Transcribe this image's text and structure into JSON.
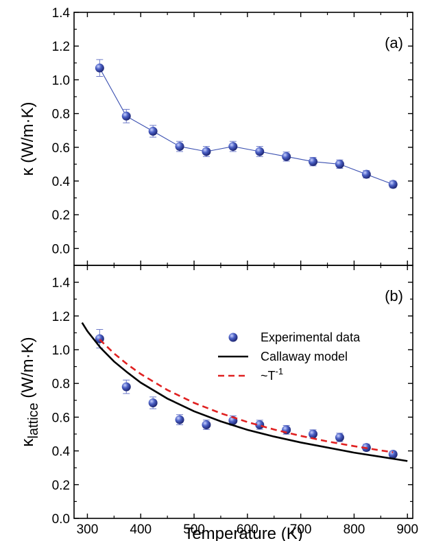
{
  "chart_data": [
    {
      "type": "scatter",
      "panel_label": "(a)",
      "ylabel": "κ (W/m·K)",
      "xlim": [
        275,
        910
      ],
      "ylim": [
        -0.1,
        1.4
      ],
      "x_ticks": [
        300,
        400,
        500,
        600,
        700,
        800,
        900
      ],
      "y_ticks": [
        0.0,
        0.2,
        0.4,
        0.6,
        0.8,
        1.0,
        1.2,
        1.4
      ],
      "y_tick_labels": [
        "0.0",
        "0.2",
        "0.4",
        "0.6",
        "0.8",
        "1.0",
        "1.2",
        "1.4"
      ],
      "grid": false,
      "series": [
        {
          "kind": "points_line",
          "color": "#3a4fb0",
          "x": [
            323,
            373,
            423,
            473,
            523,
            573,
            623,
            673,
            723,
            773,
            823,
            873
          ],
          "y": [
            1.07,
            0.785,
            0.695,
            0.605,
            0.575,
            0.605,
            0.575,
            0.545,
            0.515,
            0.5,
            0.44,
            0.38
          ],
          "error": [
            0.05,
            0.04,
            0.035,
            0.03,
            0.03,
            0.03,
            0.03,
            0.027,
            0.025,
            0.025,
            0.022,
            0.02
          ]
        }
      ]
    },
    {
      "type": "scatter",
      "panel_label": "(b)",
      "xlabel": "Temperature (K)",
      "ylabel_main": "κ",
      "ylabel_sub": "lattice",
      "ylabel_unit": " (W/m·K)",
      "xlim": [
        275,
        910
      ],
      "ylim": [
        0.0,
        1.5
      ],
      "x_ticks": [
        300,
        400,
        500,
        600,
        700,
        800,
        900
      ],
      "x_tick_labels": [
        "300",
        "400",
        "500",
        "600",
        "700",
        "800",
        "900"
      ],
      "y_ticks": [
        0.0,
        0.2,
        0.4,
        0.6,
        0.8,
        1.0,
        1.2,
        1.4
      ],
      "y_tick_labels": [
        "0.0",
        "0.2",
        "0.4",
        "0.6",
        "0.8",
        "1.0",
        "1.2",
        "1.4"
      ],
      "grid": false,
      "legend_position": "right",
      "series": [
        {
          "name": "Experimental data",
          "kind": "points",
          "color": "#3a4fb0",
          "x": [
            323,
            373,
            423,
            473,
            523,
            573,
            623,
            673,
            723,
            773,
            823,
            873
          ],
          "y": [
            1.065,
            0.78,
            0.685,
            0.585,
            0.555,
            0.58,
            0.555,
            0.525,
            0.5,
            0.48,
            0.42,
            0.38
          ],
          "error": [
            0.055,
            0.04,
            0.035,
            0.03,
            0.028,
            0.028,
            0.027,
            0.026,
            0.025,
            0.025,
            0.02,
            0.018
          ]
        },
        {
          "name": "Callaway model",
          "kind": "line",
          "color": "#000000",
          "dash": "solid",
          "x": [
            290,
            300,
            325,
            350,
            375,
            400,
            450,
            500,
            550,
            600,
            650,
            700,
            750,
            800,
            850,
            900
          ],
          "y": [
            1.16,
            1.11,
            1.01,
            0.93,
            0.865,
            0.805,
            0.71,
            0.635,
            0.575,
            0.525,
            0.485,
            0.45,
            0.42,
            0.39,
            0.365,
            0.34
          ]
        },
        {
          "name_prefix": "~T",
          "name_sup": "-1",
          "kind": "line",
          "color": "#e02020",
          "dash": "dashed",
          "x": [
            323,
            350,
            375,
            400,
            450,
            500,
            550,
            600,
            650,
            700,
            750,
            800,
            850,
            873
          ],
          "y": [
            1.06,
            0.978,
            0.913,
            0.856,
            0.761,
            0.685,
            0.623,
            0.571,
            0.527,
            0.489,
            0.456,
            0.428,
            0.403,
            0.392
          ]
        }
      ]
    }
  ]
}
